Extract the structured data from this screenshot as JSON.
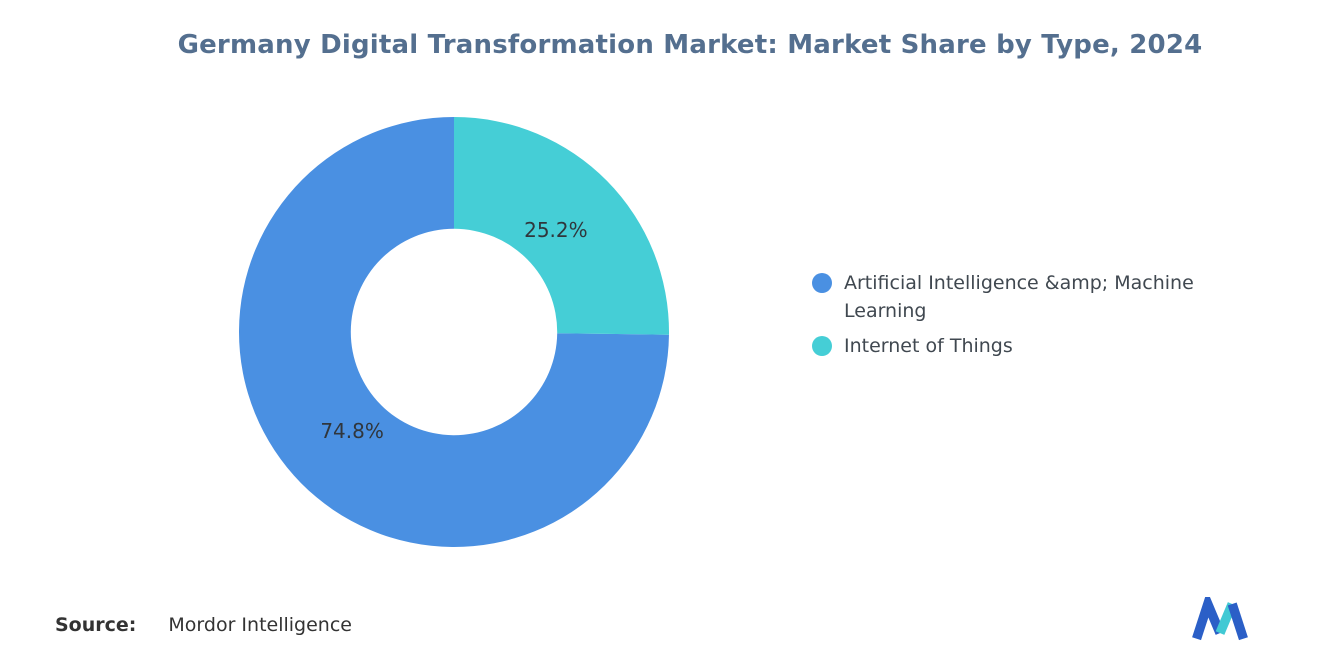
{
  "title": "Germany Digital Transformation Market: Market Share by Type, 2024",
  "legend": {
    "position": "right",
    "items": [
      {
        "label": "Artificial Intelligence &amp; Machine Learning",
        "color": "#4A90E2"
      },
      {
        "label": "Internet of Things",
        "color": "#45CED6"
      }
    ]
  },
  "footer": {
    "source_label": "Source:",
    "source_value": "Mordor Intelligence",
    "logo_name": "mordor-intelligence-logo"
  },
  "colors": {
    "title": "#546f8f",
    "slice_blue": "#4A90E2",
    "slice_teal": "#45CED6",
    "data_label": "#30363c",
    "legend_text": "#404850",
    "logo_blue": "#2B5FC7",
    "logo_teal": "#41C9D4"
  },
  "chart_data": {
    "type": "pie",
    "subtype": "donut",
    "title": "Germany Digital Transformation Market: Market Share by Type, 2024",
    "categories": [
      "Artificial Intelligence &amp; Machine Learning",
      "Internet of Things"
    ],
    "values": [
      74.8,
      25.2
    ],
    "data_labels": [
      "74.8%",
      "25.2%"
    ],
    "colors": [
      "#4A90E2",
      "#45CED6"
    ],
    "start_angle_deg": -90,
    "direction": "counterclockwise",
    "inner_radius_ratio": 0.48,
    "legend_position": "right",
    "grid": false
  }
}
